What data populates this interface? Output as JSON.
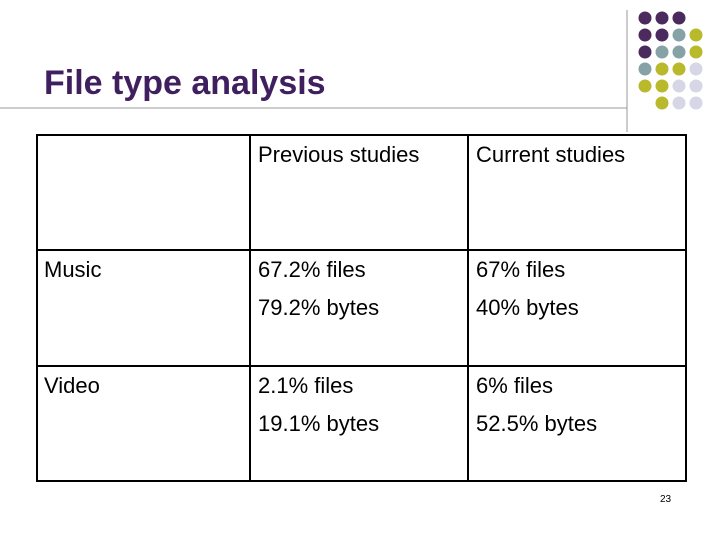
{
  "title": "File type analysis",
  "table": {
    "header": [
      "Previous studies",
      "Current studies"
    ],
    "rows": [
      {
        "label": "Music",
        "cells": [
          [
            "67.2% files",
            "79.2% bytes"
          ],
          [
            "67% files",
            "40% bytes"
          ]
        ]
      },
      {
        "label": "Video",
        "cells": [
          [
            "2.1% files",
            "19.1% bytes"
          ],
          [
            "6% files",
            "52.5% bytes"
          ]
        ]
      }
    ]
  },
  "page_number": "23"
}
